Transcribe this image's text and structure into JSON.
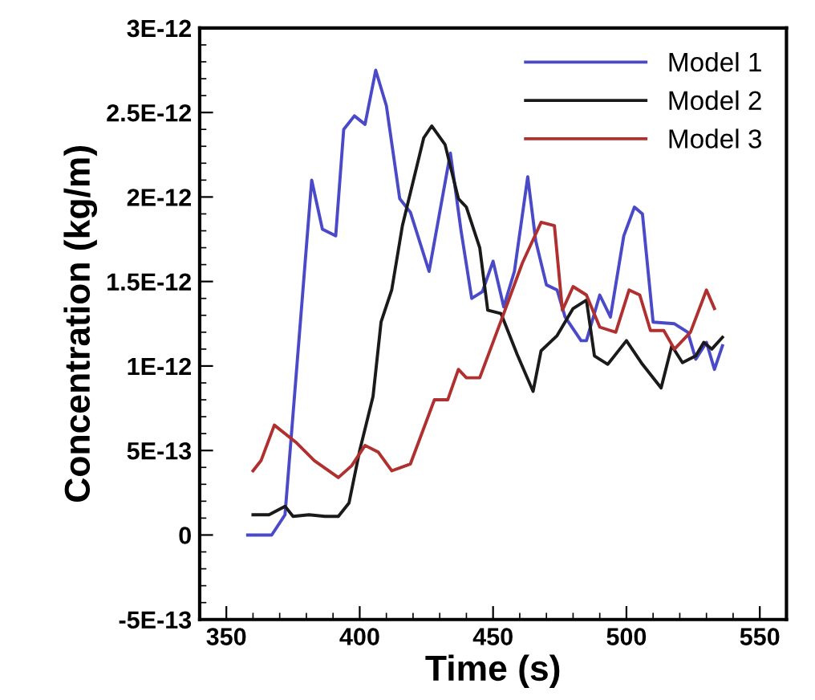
{
  "chart_data": {
    "type": "line",
    "xlabel": "Time (s)",
    "ylabel": "Concentration (kg/m)",
    "xlim": [
      340,
      560
    ],
    "xticks": [
      350,
      400,
      450,
      500,
      550
    ],
    "ylim": [
      -5e-13,
      3e-12
    ],
    "yticks": [
      {
        "value": -5e-13,
        "label": "-5E-13"
      },
      {
        "value": 0,
        "label": "0"
      },
      {
        "value": 5e-13,
        "label": "5E-13"
      },
      {
        "value": 1e-12,
        "label": "1E-12"
      },
      {
        "value": 1.5e-12,
        "label": "1.5E-12"
      },
      {
        "value": 2e-12,
        "label": "2E-12"
      },
      {
        "value": 2.5e-12,
        "label": "2.5E-12"
      },
      {
        "value": 3e-12,
        "label": "3E-12"
      }
    ],
    "grid": false,
    "legend": "top right",
    "marker": "none",
    "line_style": "solid",
    "series": [
      {
        "name": "Model 1",
        "color": "#4a4ac8",
        "x": [
          358,
          367,
          372,
          382,
          386,
          391,
          394,
          398,
          402,
          406,
          410,
          415,
          419,
          426,
          434,
          438,
          442,
          446,
          450,
          454,
          458,
          463,
          466,
          470,
          474,
          477,
          483,
          485,
          490,
          494,
          499,
          503,
          506,
          510,
          518,
          523,
          526,
          530,
          533,
          536
        ],
        "values": [
          0,
          0,
          1.2e-13,
          2.1e-12,
          1.81e-12,
          1.77e-12,
          2.4e-12,
          2.48e-12,
          2.43e-12,
          2.75e-12,
          2.54e-12,
          1.99e-12,
          1.91e-12,
          1.56e-12,
          2.26e-12,
          1.8e-12,
          1.4e-12,
          1.44e-12,
          1.62e-12,
          1.35e-12,
          1.56e-12,
          2.12e-12,
          1.74e-12,
          1.48e-12,
          1.45e-12,
          1.29e-12,
          1.15e-12,
          1.15e-12,
          1.42e-12,
          1.29e-12,
          1.77e-12,
          1.94e-12,
          1.9e-12,
          1.26e-12,
          1.25e-12,
          1.2e-12,
          1.04e-12,
          1.14e-12,
          9.8e-13,
          1.12e-12
        ]
      },
      {
        "name": "Model 2",
        "color": "#1a1a1a",
        "x": [
          360,
          366,
          372,
          375,
          381,
          387,
          392,
          396,
          400,
          405,
          408,
          412,
          416,
          424,
          427,
          432,
          437,
          440,
          445,
          448,
          453,
          459,
          465,
          468,
          474,
          480,
          485,
          488,
          493,
          500,
          506,
          513,
          517,
          521,
          526,
          529,
          532,
          536
        ],
        "values": [
          1.2e-13,
          1.2e-13,
          1.7e-13,
          1.1e-13,
          1.2e-13,
          1.1e-13,
          1.1e-13,
          1.9e-13,
          5e-13,
          8.2e-13,
          1.26e-12,
          1.45e-12,
          1.83e-12,
          2.35e-12,
          2.42e-12,
          2.31e-12,
          1.99e-12,
          1.94e-12,
          1.7e-12,
          1.33e-12,
          1.31e-12,
          1.07e-12,
          8.5e-13,
          1.09e-12,
          1.18e-12,
          1.34e-12,
          1.39e-12,
          1.06e-12,
          1.01e-12,
          1.15e-12,
          1.01e-12,
          8.7e-13,
          1.12e-12,
          1.02e-12,
          1.06e-12,
          1.14e-12,
          1.1e-12,
          1.17e-12
        ]
      },
      {
        "name": "Model 3",
        "color": "#b03030",
        "x": [
          360,
          363,
          368,
          376,
          383,
          392,
          397,
          402,
          407,
          412,
          419,
          428,
          433,
          437,
          440,
          445,
          454,
          461,
          468,
          473,
          476,
          480,
          485,
          490,
          496,
          501,
          505,
          509,
          514,
          518,
          524,
          530,
          533
        ],
        "values": [
          3.8e-13,
          4.4e-13,
          6.5e-13,
          5.5e-13,
          4.4e-13,
          3.4e-13,
          4.1e-13,
          5.3e-13,
          4.9e-13,
          3.8e-13,
          4.2e-13,
          8e-13,
          8e-13,
          9.8e-13,
          9.3e-13,
          9.3e-13,
          1.31e-12,
          1.61e-12,
          1.85e-12,
          1.83e-12,
          1.33e-12,
          1.47e-12,
          1.42e-12,
          1.23e-12,
          1.2e-12,
          1.45e-12,
          1.42e-12,
          1.21e-12,
          1.21e-12,
          1.1e-12,
          1.2e-12,
          1.45e-12,
          1.34e-12
        ]
      }
    ]
  }
}
